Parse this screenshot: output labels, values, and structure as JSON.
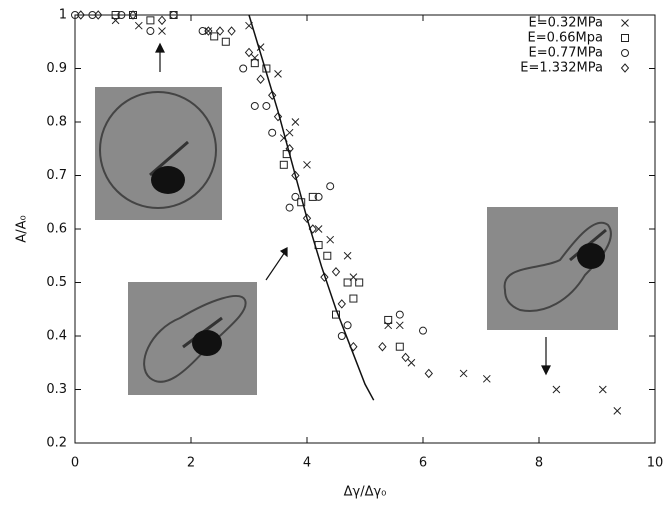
{
  "chart_data": {
    "type": "scatter",
    "x_label": "Δγ/Δγ₀",
    "y_label": "A/A₀",
    "xlim": [
      0,
      10
    ],
    "xticks": [
      0,
      2,
      4,
      6,
      8,
      10
    ],
    "ylim": [
      0.2,
      1
    ],
    "yticks": [
      0.2,
      0.3,
      0.4,
      0.5,
      0.6,
      0.7,
      0.8,
      0.9,
      1
    ],
    "legend": "top-right",
    "series": [
      {
        "name": "E=0.32MPa",
        "marker": "x",
        "color": "#222222",
        "x": [
          0.7,
          1.1,
          1.5,
          2.3,
          3.0,
          3.1,
          3.2,
          3.5,
          3.6,
          3.7,
          3.8,
          4.0,
          4.2,
          4.4,
          4.7,
          4.8,
          5.4,
          5.6,
          5.8,
          6.7,
          7.1,
          8.3,
          9.1,
          9.35
        ],
        "values": [
          0.99,
          0.98,
          0.97,
          0.97,
          0.98,
          0.92,
          0.94,
          0.89,
          0.77,
          0.78,
          0.8,
          0.72,
          0.6,
          0.58,
          0.55,
          0.51,
          0.42,
          0.42,
          0.35,
          0.33,
          0.32,
          0.3,
          0.3,
          0.26
        ]
      },
      {
        "name": "E=0.66Mpa",
        "marker": "square",
        "color": "#222222",
        "x": [
          0.7,
          1.0,
          1.3,
          1.7,
          2.4,
          2.6,
          3.1,
          3.3,
          3.6,
          3.65,
          3.9,
          4.1,
          4.2,
          4.35,
          4.5,
          4.7,
          4.8,
          4.9,
          5.4,
          5.6
        ],
        "values": [
          1,
          1,
          0.99,
          1,
          0.96,
          0.95,
          0.91,
          0.9,
          0.72,
          0.74,
          0.65,
          0.66,
          0.57,
          0.55,
          0.44,
          0.5,
          0.47,
          0.5,
          0.43,
          0.38
        ]
      },
      {
        "name": "E=0.77MPa",
        "marker": "circle",
        "color": "#222222",
        "x": [
          0,
          0.3,
          0.8,
          1.3,
          1.7,
          2.2,
          2.9,
          3.1,
          3.3,
          3.4,
          3.7,
          3.8,
          4.2,
          4.4,
          4.6,
          4.7,
          5.6,
          6.0
        ],
        "values": [
          1,
          1,
          1,
          0.97,
          1,
          0.97,
          0.9,
          0.83,
          0.83,
          0.78,
          0.64,
          0.66,
          0.66,
          0.68,
          0.4,
          0.42,
          0.44,
          0.41
        ]
      },
      {
        "name": "E=1.332MPa",
        "marker": "diamond",
        "color": "#222222",
        "x": [
          0.1,
          0.4,
          1.0,
          1.5,
          2.3,
          2.5,
          2.7,
          3.0,
          3.2,
          3.4,
          3.5,
          3.7,
          3.8,
          4.0,
          4.1,
          4.3,
          4.5,
          4.6,
          4.8,
          5.3,
          5.7,
          6.1
        ],
        "values": [
          1,
          1,
          1,
          0.99,
          0.97,
          0.97,
          0.97,
          0.93,
          0.88,
          0.85,
          0.81,
          0.75,
          0.7,
          0.62,
          0.6,
          0.51,
          0.52,
          0.46,
          0.38,
          0.38,
          0.36,
          0.33
        ]
      },
      {
        "marker": "line",
        "color": "#111111",
        "x": [
          3.0,
          3.25,
          3.5,
          3.75,
          4.0,
          4.25,
          4.5,
          4.75,
          5.0,
          5.15
        ],
        "values": [
          1.0,
          0.91,
          0.82,
          0.72,
          0.62,
          0.53,
          0.45,
          0.38,
          0.31,
          0.28
        ]
      }
    ]
  }
}
